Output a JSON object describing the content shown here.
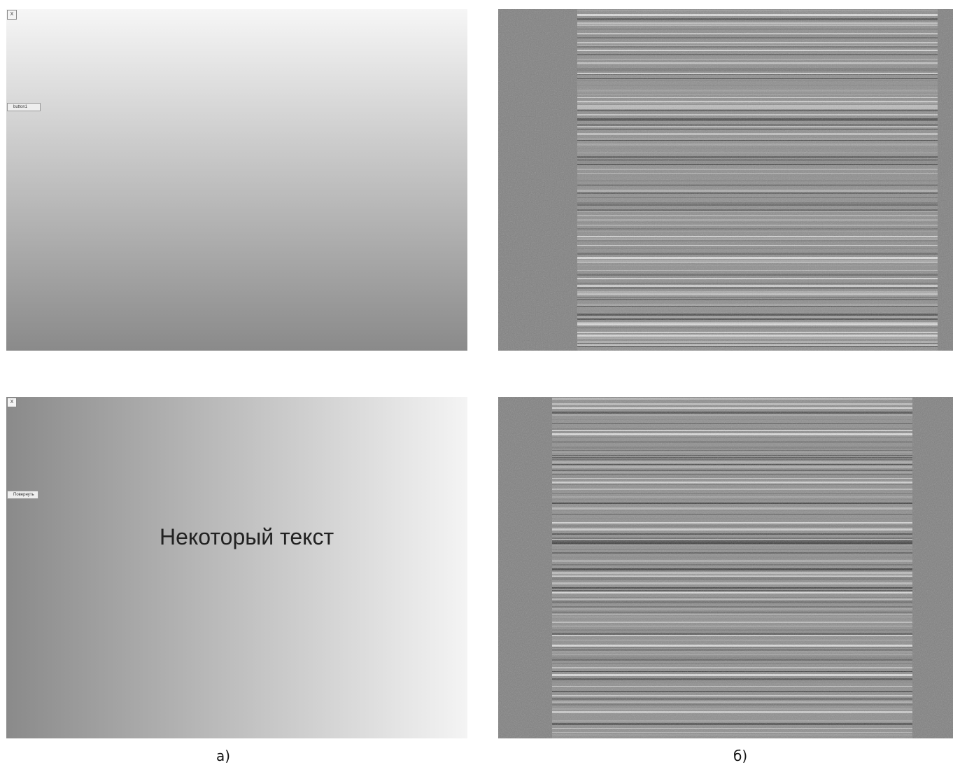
{
  "figures": [
    {
      "close_button": "X",
      "button": "button1"
    },
    {
      "close_button": "X",
      "button": "Повернуть",
      "text": "Некоторый текст"
    }
  ],
  "captions": [
    "а)",
    "б)"
  ]
}
